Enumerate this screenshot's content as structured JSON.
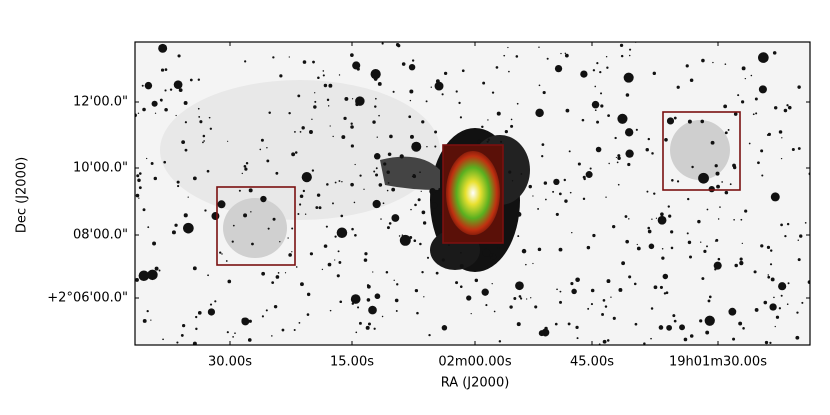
{
  "image": {
    "x_axis": {
      "label": "RA (J2000)",
      "ticks": [
        "30.00s",
        "15.00s",
        "02m00.00s",
        "45.00s",
        "19h01m30.00s"
      ]
    },
    "y_axis": {
      "label": "Dec (J2000)",
      "ticks": [
        "12'00.0\"",
        "10'00.0\"",
        "08'00.0\"",
        "+2°06'00.0\""
      ]
    }
  }
}
